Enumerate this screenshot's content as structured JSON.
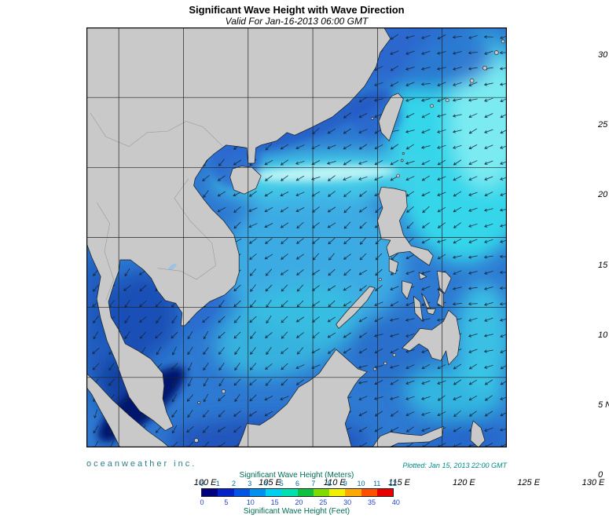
{
  "title": "Significant Wave Height with Wave Direction",
  "subtitle": "Valid For Jan-16-2013 06:00 GMT",
  "map": {
    "lon_ticks": [
      "100 E",
      "105 E",
      "110 E",
      "115 E",
      "120 E",
      "125 E",
      "130 E"
    ],
    "lon_values": [
      100,
      105,
      110,
      115,
      120,
      125,
      130
    ],
    "lat_ticks": [
      "30 N",
      "25 N",
      "20 N",
      "15 N",
      "10 N",
      "5 N",
      "0"
    ],
    "lat_values": [
      30,
      25,
      20,
      15,
      10,
      5,
      0
    ]
  },
  "footer": {
    "credit": "oceanweather inc.",
    "plotted": "Plotted: Jan 15, 2013 22:00 GMT"
  },
  "colorbar": {
    "title_meters": "Significant Wave Height (Meters)",
    "title_feet": "Significant Wave Height (Feet)",
    "meters_ticks": [
      "0",
      "1",
      "2",
      "3",
      "4",
      "5",
      "6",
      "7",
      "8",
      "9",
      "10",
      "11",
      "12"
    ],
    "feet_ticks": [
      "0",
      "5",
      "10",
      "15",
      "20",
      "25",
      "30",
      "35",
      "40"
    ],
    "feet_values": [
      0,
      5,
      10,
      15,
      20,
      25,
      30,
      35,
      40
    ],
    "segment_colors": [
      "#000080",
      "#0022c8",
      "#0055e6",
      "#0090f0",
      "#00d0f0",
      "#00e0b0",
      "#10c040",
      "#80dc00",
      "#f0f000",
      "#ffa800",
      "#ff5000",
      "#e80000"
    ]
  },
  "colors": {
    "ocean_base": "#2e79d2",
    "land": "#c9c9c9",
    "land_outline": "#1a1a1a",
    "grid": "#222222",
    "border": "#000000",
    "arrow": "#14283c",
    "credit_text": "#2e7d87",
    "plotted_text": "#008a8a",
    "cb_title_text": "#006b55",
    "cb_meters_text": "#006a9e",
    "cb_feet_text": "#2244cc",
    "axis_text": "#000000"
  }
}
